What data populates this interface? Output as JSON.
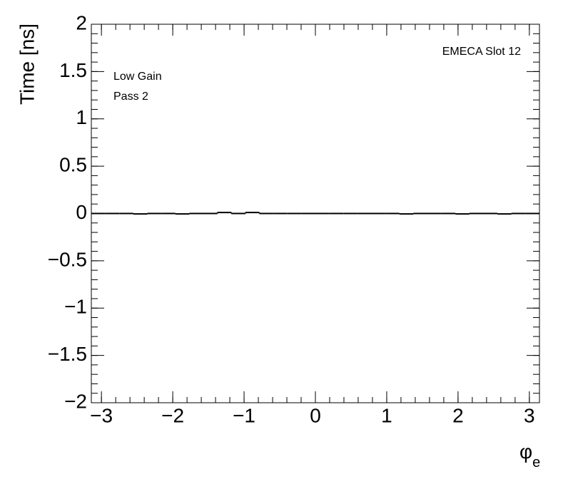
{
  "chart_data": {
    "type": "histogram",
    "ylabel": "Time [ns]",
    "xlabel": {
      "main": "φ",
      "sub": "e"
    },
    "annotations": [
      "EMECA Slot 12",
      "Low Gain",
      "Pass 2"
    ],
    "bins": [
      -3.1416,
      -2.9452,
      -2.7489,
      -2.5525,
      -2.3562,
      -2.1598,
      -1.9635,
      -1.7671,
      -1.5708,
      -1.3744,
      -1.1781,
      -0.9817,
      -0.7854,
      -0.589,
      -0.3927,
      -0.1963,
      0,
      0.1963,
      0.3927,
      0.589,
      0.7854,
      0.9817,
      1.1781,
      1.3744,
      1.5708,
      1.7671,
      1.9635,
      2.1598,
      2.3562,
      2.5525,
      2.7489,
      2.9452,
      3.1416
    ],
    "values": [
      0,
      0,
      0,
      -0.005,
      0,
      0,
      -0.005,
      0,
      0,
      0.01,
      0,
      0.01,
      0,
      0,
      0,
      0,
      0,
      0,
      0,
      0,
      0,
      0,
      -0.005,
      0,
      0,
      0,
      -0.005,
      0,
      0,
      -0.005,
      0,
      0
    ],
    "color": "#000000",
    "xlim": [
      -3.1416,
      3.1416
    ],
    "xticks": [
      {
        "value": -3,
        "label": "−3"
      },
      {
        "value": -2,
        "label": "−2"
      },
      {
        "value": -1,
        "label": "−1"
      },
      0,
      1,
      2,
      3
    ],
    "ylim": [
      -2,
      2
    ],
    "yticks": [
      {
        "value": -2,
        "label": "−2"
      },
      {
        "value": -1.5,
        "label": "−1.5"
      },
      {
        "value": -1,
        "label": "−1"
      },
      {
        "value": -0.5,
        "label": "−0.5"
      },
      0,
      0.5,
      1,
      1.5,
      2
    ]
  }
}
